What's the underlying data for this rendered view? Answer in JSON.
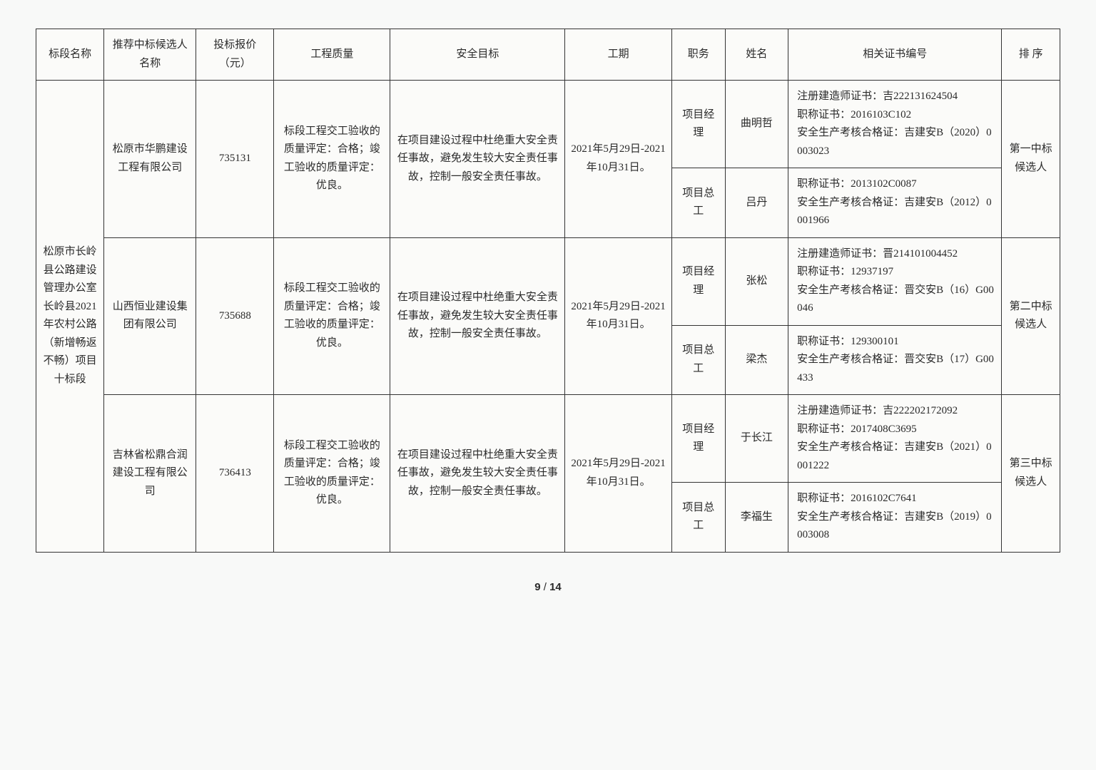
{
  "headers": {
    "section": "标段名称",
    "candidate": "推荐中标候选人名称",
    "price": "投标报价（元）",
    "quality": "工程质量",
    "safety": "安全目标",
    "period": "工期",
    "role": "职务",
    "name": "姓名",
    "cert": "相关证书编号",
    "rank": "排 序"
  },
  "section_name": "松原市长岭县公路建设管理办公室长岭县2021年农村公路（新增畅返不畅）项目十标段",
  "rows": [
    {
      "candidate": "松原市华鹏建设工程有限公司",
      "price": "735131",
      "quality": "标段工程交工验收的质量评定：合格；竣工验收的质量评定：优良。",
      "safety": "在项目建设过程中杜绝重大安全责任事故，避免发生较大安全责任事故，控制一般安全责任事故。",
      "period": "2021年5月29日-2021年10月31日。",
      "rank": "第一中标候选人",
      "people": [
        {
          "role": "项目经理",
          "name": "曲明哲",
          "cert": "注册建造师证书：吉222131624504\n职称证书：2016103C102\n安全生产考核合格证：吉建安B（2020）0003023"
        },
        {
          "role": "项目总工",
          "name": "吕丹",
          "cert": "职称证书：2013102C0087\n安全生产考核合格证：吉建安B（2012）0001966"
        }
      ]
    },
    {
      "candidate": "山西恒业建设集团有限公司",
      "price": "735688",
      "quality": "标段工程交工验收的质量评定：合格；竣工验收的质量评定：优良。",
      "safety": "在项目建设过程中杜绝重大安全责任事故，避免发生较大安全责任事故，控制一般安全责任事故。",
      "period": "2021年5月29日-2021年10月31日。",
      "rank": "第二中标候选人",
      "people": [
        {
          "role": "项目经理",
          "name": "张松",
          "cert": "注册建造师证书：晋214101004452\n职称证书：12937197\n安全生产考核合格证：晋交安B（16）G00046"
        },
        {
          "role": "项目总工",
          "name": "梁杰",
          "cert": "职称证书：129300101\n安全生产考核合格证：晋交安B（17）G00433"
        }
      ]
    },
    {
      "candidate": "吉林省松鼎合润建设工程有限公司",
      "price": "736413",
      "quality": "标段工程交工验收的质量评定：合格；竣工验收的质量评定：优良。",
      "safety": "在项目建设过程中杜绝重大安全责任事故，避免发生较大安全责任事故，控制一般安全责任事故。",
      "period": "2021年5月29日-2021年10月31日。",
      "rank": "第三中标候选人",
      "people": [
        {
          "role": "项目经理",
          "name": "于长江",
          "cert": "注册建造师证书：吉222202172092\n职称证书：2017408C3695\n安全生产考核合格证：吉建安B（2021）0001222"
        },
        {
          "role": "项目总工",
          "name": "李福生",
          "cert": "职称证书：2016102C7641\n安全生产考核合格证：吉建安B（2019）0003008"
        }
      ]
    }
  ],
  "footer": {
    "page": "9",
    "sep": " / ",
    "total": "14"
  }
}
